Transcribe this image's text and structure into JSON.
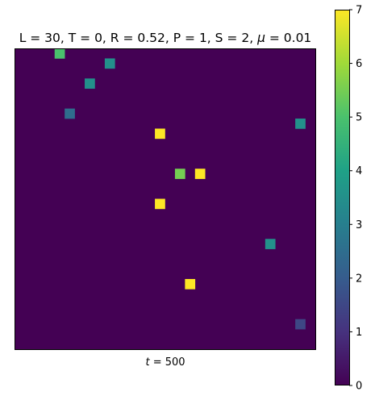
{
  "chart_data": {
    "type": "heatmap",
    "title": "L = 30, T = 0, R = 0.52, P = 1, S = 2, μ = 0.01",
    "title_parts": {
      "prefix": "L = 30, T = 0, R = 0.52, P = 1, S = 2, ",
      "mu_symbol": "μ",
      "suffix": " = 0.01"
    },
    "xlabel": "t = 500",
    "xlabel_parts": {
      "var": "t",
      "suffix": " = 500"
    },
    "grid_size": 30,
    "background_value": 0,
    "colormap": "viridis",
    "value_range": [
      0,
      7
    ],
    "colorbar": {
      "ticks": [
        0,
        1,
        2,
        3,
        4,
        5,
        6,
        7
      ],
      "tick_labels": [
        "0",
        "1",
        "2",
        "3",
        "4",
        "5",
        "6",
        "7"
      ]
    },
    "cells": [
      {
        "row": 0,
        "col": 4,
        "value": 5
      },
      {
        "row": 1,
        "col": 9,
        "value": 3.5
      },
      {
        "row": 3,
        "col": 7,
        "value": 3.5
      },
      {
        "row": 6,
        "col": 5,
        "value": 2.5
      },
      {
        "row": 7,
        "col": 28,
        "value": 3.5
      },
      {
        "row": 8,
        "col": 14,
        "value": 7
      },
      {
        "row": 12,
        "col": 16,
        "value": 5.5
      },
      {
        "row": 12,
        "col": 18,
        "value": 7
      },
      {
        "row": 15,
        "col": 14,
        "value": 7
      },
      {
        "row": 19,
        "col": 25,
        "value": 3.5
      },
      {
        "row": 23,
        "col": 17,
        "value": 7
      },
      {
        "row": 27,
        "col": 28,
        "value": 1.5
      }
    ],
    "axes_ticks_visible": false,
    "grid": false
  }
}
